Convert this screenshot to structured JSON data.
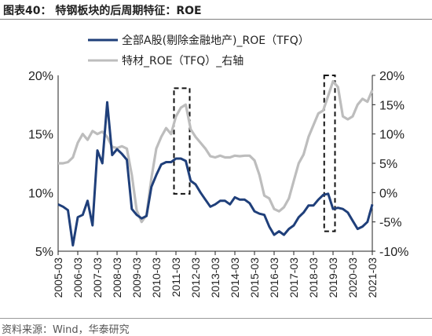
{
  "header": {
    "title": "图表40：  特钢板块的后周期特征：ROE"
  },
  "footer": {
    "source": "资料来源：Wind，华泰研究"
  },
  "chart_data": {
    "type": "line",
    "title": "图表40：  特钢板块的后周期特征：ROE",
    "xlabel": "",
    "ylabel": "",
    "categories": [
      "2005-03",
      "2006-03",
      "2007-03",
      "2008-03",
      "2009-03",
      "2010-03",
      "2011-03",
      "2012-03",
      "2013-03",
      "2014-03",
      "2015-03",
      "2016-03",
      "2017-03",
      "2018-03",
      "2019-03",
      "2020-03",
      "2021-03"
    ],
    "left_axis": {
      "ylim": [
        5,
        20
      ],
      "ticks": [
        "5%",
        "10%",
        "15%",
        "20%"
      ]
    },
    "right_axis": {
      "ylim": [
        -10,
        20
      ],
      "ticks": [
        "-10%",
        "-5%",
        "0%",
        "5%",
        "10%",
        "15%",
        "20%"
      ]
    },
    "legend": {
      "placement": "top-left"
    },
    "grid": false,
    "series": [
      {
        "name": "全部A股(剔除金融地产)_ROE（TFQ）",
        "axis": "left",
        "color": "#1f3f7a",
        "x": [
          2005.0,
          2005.25,
          2005.5,
          2005.75,
          2006.0,
          2006.25,
          2006.5,
          2006.75,
          2007.0,
          2007.25,
          2007.5,
          2007.75,
          2008.0,
          2008.25,
          2008.5,
          2008.75,
          2009.0,
          2009.25,
          2009.5,
          2009.75,
          2010.0,
          2010.25,
          2010.5,
          2010.75,
          2011.0,
          2011.25,
          2011.5,
          2011.75,
          2012.0,
          2012.25,
          2012.5,
          2012.75,
          2013.0,
          2013.25,
          2013.5,
          2013.75,
          2014.0,
          2014.25,
          2014.5,
          2014.75,
          2015.0,
          2015.25,
          2015.5,
          2015.75,
          2016.0,
          2016.25,
          2016.5,
          2016.75,
          2017.0,
          2017.25,
          2017.5,
          2017.75,
          2018.0,
          2018.25,
          2018.5,
          2018.75,
          2019.0,
          2019.25,
          2019.5,
          2019.75,
          2020.0,
          2020.25,
          2020.5,
          2020.75,
          2021.0
        ],
        "values": [
          9.0,
          8.8,
          8.5,
          5.5,
          7.9,
          8.1,
          9.3,
          7.2,
          13.6,
          12.5,
          17.7,
          13.2,
          13.7,
          13.3,
          12.8,
          8.6,
          8.1,
          7.8,
          8.0,
          10.5,
          11.5,
          12.4,
          12.6,
          12.6,
          12.9,
          12.9,
          12.7,
          11.0,
          10.7,
          10.0,
          9.4,
          8.8,
          9.0,
          9.3,
          9.3,
          9.0,
          9.6,
          9.4,
          9.4,
          9.1,
          8.4,
          8.2,
          8.1,
          7.1,
          6.4,
          6.7,
          6.4,
          6.9,
          7.2,
          7.9,
          8.3,
          8.9,
          8.9,
          9.4,
          9.8,
          9.9,
          8.6,
          8.7,
          8.6,
          8.3,
          7.6,
          6.9,
          7.1,
          7.5,
          9.0
        ]
      },
      {
        "name": "特材_ROE（TFQ）_右轴",
        "axis": "right",
        "color": "#bdbdbd",
        "x": [
          2005.0,
          2005.25,
          2005.5,
          2005.75,
          2006.0,
          2006.25,
          2006.5,
          2006.75,
          2007.0,
          2007.25,
          2007.5,
          2007.75,
          2008.0,
          2008.25,
          2008.5,
          2008.75,
          2009.0,
          2009.25,
          2009.5,
          2009.75,
          2010.0,
          2010.25,
          2010.5,
          2010.75,
          2011.0,
          2011.25,
          2011.5,
          2011.75,
          2012.0,
          2012.25,
          2012.5,
          2012.75,
          2013.0,
          2013.25,
          2013.5,
          2013.75,
          2014.0,
          2014.25,
          2014.5,
          2014.75,
          2015.0,
          2015.25,
          2015.5,
          2015.75,
          2016.0,
          2016.25,
          2016.5,
          2016.75,
          2017.0,
          2017.25,
          2017.5,
          2017.75,
          2018.0,
          2018.25,
          2018.5,
          2018.75,
          2019.0,
          2019.25,
          2019.5,
          2019.75,
          2020.0,
          2020.25,
          2020.5,
          2020.75,
          2021.0
        ],
        "values": [
          5.0,
          5.0,
          5.2,
          6.0,
          8.5,
          10.0,
          9.0,
          10.5,
          10.0,
          10.4,
          9.5,
          7.8,
          7.6,
          7.9,
          7.5,
          3.0,
          -3.0,
          -5.0,
          -3.8,
          2.5,
          7.5,
          9.5,
          11.0,
          10.0,
          13.0,
          14.5,
          15.0,
          10.8,
          9.5,
          8.5,
          7.5,
          6.2,
          6.0,
          6.3,
          6.0,
          6.0,
          6.3,
          6.2,
          6.3,
          6.3,
          5.5,
          3.0,
          -0.5,
          -1.0,
          -2.8,
          -3.2,
          -2.5,
          -1.0,
          2.0,
          5.0,
          6.5,
          9.5,
          11.5,
          13.5,
          14.0,
          16.5,
          19.0,
          18.0,
          13.0,
          12.5,
          13.0,
          15.0,
          16.0,
          15.5,
          17.5
        ]
      }
    ],
    "annotations": [
      {
        "type": "dashed-box",
        "x": [
          2010.9,
          2011.7
        ],
        "left_y": [
          9.9,
          18.9
        ]
      },
      {
        "type": "dashed-box",
        "x": [
          2018.55,
          2019.1
        ],
        "left_y": [
          6.7,
          20.0
        ]
      }
    ]
  }
}
